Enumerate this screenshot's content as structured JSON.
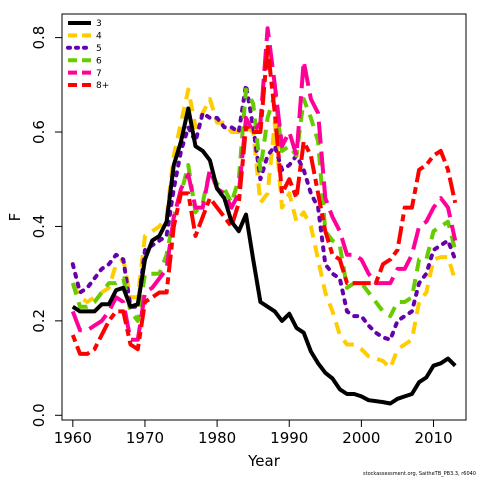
{
  "chart_data": {
    "type": "line",
    "xlabel": "Year",
    "ylabel": "F",
    "xlim": [
      1958.5,
      2014.5
    ],
    "ylim": [
      -0.01,
      0.85
    ],
    "xticks": [
      1960,
      1970,
      1980,
      1990,
      2000,
      2010
    ],
    "yticks": [
      0.0,
      0.2,
      0.4,
      0.6,
      0.8
    ],
    "ytick_labels": [
      "0.0",
      "0.2",
      "0.4",
      "0.6",
      "0.8"
    ],
    "legend_position": "top-left",
    "x": [
      1960,
      1961,
      1962,
      1963,
      1964,
      1965,
      1966,
      1967,
      1968,
      1969,
      1970,
      1971,
      1972,
      1973,
      1974,
      1975,
      1976,
      1977,
      1978,
      1979,
      1980,
      1981,
      1982,
      1983,
      1984,
      1985,
      1986,
      1987,
      1988,
      1989,
      1990,
      1991,
      1992,
      1993,
      1994,
      1995,
      1996,
      1997,
      1998,
      1999,
      2000,
      2001,
      2002,
      2003,
      2004,
      2005,
      2006,
      2007,
      2008,
      2009,
      2010,
      2011,
      2012,
      2013
    ],
    "series": [
      {
        "name": "3",
        "color": "#000000",
        "dash": "solid",
        "values": [
          0.23,
          0.22,
          0.22,
          0.22,
          0.235,
          0.235,
          0.265,
          0.27,
          0.23,
          0.235,
          0.33,
          0.37,
          0.38,
          0.41,
          0.53,
          0.58,
          0.65,
          0.57,
          0.56,
          0.54,
          0.48,
          0.46,
          0.41,
          0.39,
          0.425,
          0.33,
          0.24,
          0.23,
          0.22,
          0.2,
          0.215,
          0.185,
          0.175,
          0.135,
          0.11,
          0.09,
          0.078,
          0.055,
          0.045,
          0.045,
          0.04,
          0.032,
          0.03,
          0.028,
          0.025,
          0.035,
          0.04,
          0.045,
          0.07,
          0.08,
          0.105,
          0.11,
          0.12,
          0.105
        ]
      },
      {
        "name": "4",
        "color": "#ffcc00",
        "dash": "dashed",
        "values": [
          0.28,
          0.25,
          0.24,
          0.25,
          0.26,
          0.27,
          0.32,
          0.33,
          0.25,
          0.25,
          0.38,
          0.39,
          0.4,
          0.42,
          0.55,
          0.62,
          0.69,
          0.61,
          0.64,
          0.67,
          0.62,
          0.62,
          0.6,
          0.6,
          0.61,
          0.6,
          0.45,
          0.47,
          0.62,
          0.44,
          0.47,
          0.41,
          0.43,
          0.4,
          0.33,
          0.26,
          0.22,
          0.17,
          0.15,
          0.15,
          0.14,
          0.125,
          0.12,
          0.115,
          0.1,
          0.14,
          0.15,
          0.16,
          0.24,
          0.26,
          0.33,
          0.335,
          0.335,
          0.285
        ]
      },
      {
        "name": "5",
        "color": "#6600aa",
        "dash": "dotted",
        "values": [
          0.32,
          0.26,
          0.27,
          0.29,
          0.31,
          0.32,
          0.34,
          0.33,
          0.23,
          0.23,
          0.35,
          0.36,
          0.37,
          0.38,
          0.48,
          0.56,
          0.61,
          0.58,
          0.64,
          0.63,
          0.63,
          0.61,
          0.61,
          0.6,
          0.7,
          0.61,
          0.5,
          0.55,
          0.57,
          0.52,
          0.53,
          0.55,
          0.52,
          0.47,
          0.44,
          0.32,
          0.3,
          0.29,
          0.22,
          0.21,
          0.21,
          0.19,
          0.175,
          0.165,
          0.16,
          0.2,
          0.21,
          0.22,
          0.28,
          0.3,
          0.35,
          0.36,
          0.37,
          0.33
        ]
      },
      {
        "name": "6",
        "color": "#66cc00",
        "dash": "dashed",
        "values": [
          0.28,
          0.23,
          0.23,
          0.24,
          0.26,
          0.28,
          0.28,
          0.29,
          0.22,
          0.2,
          0.3,
          0.3,
          0.3,
          0.34,
          0.42,
          0.47,
          0.53,
          0.43,
          0.45,
          0.52,
          0.49,
          0.48,
          0.45,
          0.5,
          0.69,
          0.66,
          0.52,
          0.63,
          0.68,
          0.56,
          0.57,
          0.55,
          0.67,
          0.63,
          0.58,
          0.39,
          0.37,
          0.36,
          0.27,
          0.28,
          0.28,
          0.26,
          0.24,
          0.22,
          0.21,
          0.24,
          0.24,
          0.25,
          0.33,
          0.33,
          0.39,
          0.4,
          0.41,
          0.35
        ]
      },
      {
        "name": "7",
        "color": "#ff0099",
        "dash": "longdash",
        "values": [
          0.22,
          0.18,
          0.18,
          0.19,
          0.2,
          0.22,
          0.25,
          0.24,
          0.16,
          0.16,
          0.26,
          0.27,
          0.29,
          0.31,
          0.42,
          0.48,
          0.51,
          0.44,
          0.44,
          0.52,
          0.48,
          0.47,
          0.44,
          0.47,
          0.63,
          0.6,
          0.62,
          0.82,
          0.7,
          0.57,
          0.6,
          0.55,
          0.75,
          0.67,
          0.64,
          0.46,
          0.42,
          0.39,
          0.34,
          0.34,
          0.33,
          0.3,
          0.28,
          0.28,
          0.28,
          0.31,
          0.31,
          0.34,
          0.4,
          0.41,
          0.44,
          0.46,
          0.44,
          0.37
        ]
      },
      {
        "name": "8+",
        "color": "#ff0000",
        "dash": "twodash",
        "values": [
          0.17,
          0.13,
          0.13,
          0.14,
          0.17,
          0.2,
          0.22,
          0.22,
          0.15,
          0.14,
          0.24,
          0.25,
          0.26,
          0.26,
          0.4,
          0.47,
          0.47,
          0.38,
          0.42,
          0.46,
          0.44,
          0.42,
          0.4,
          0.45,
          0.61,
          0.6,
          0.6,
          0.78,
          0.64,
          0.47,
          0.5,
          0.46,
          0.58,
          0.55,
          0.47,
          0.39,
          0.34,
          0.33,
          0.28,
          0.28,
          0.28,
          0.28,
          0.28,
          0.32,
          0.33,
          0.35,
          0.44,
          0.44,
          0.52,
          0.53,
          0.55,
          0.56,
          0.52,
          0.45
        ]
      }
    ]
  },
  "footer_text": "stockassessment.org, SaitheTB_PB3.3, r6040"
}
